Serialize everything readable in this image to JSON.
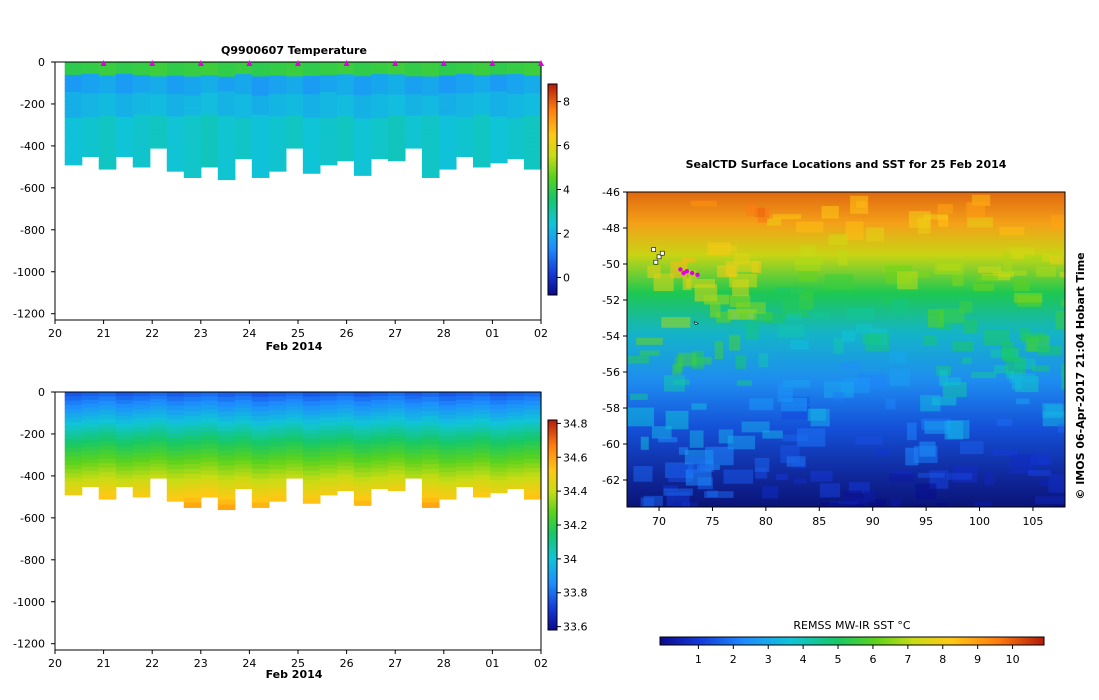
{
  "chart_data": [
    {
      "type": "heatmap",
      "title": "Q9900607  Temperature",
      "xlabel": "Feb 2014",
      "ylabel": "",
      "x_ticks": [
        "20",
        "21",
        "22",
        "23",
        "24",
        "25",
        "26",
        "27",
        "28",
        "01",
        "02"
      ],
      "y_ticks": [
        0,
        -200,
        -400,
        -600,
        -800,
        -1000,
        -1200
      ],
      "ylim": [
        -1230,
        0
      ],
      "colorbar": {
        "ticks": [
          0,
          2,
          4,
          6,
          8
        ],
        "range": [
          -0.8,
          8.8
        ]
      },
      "profile_max_depth": [
        490,
        450,
        510,
        450,
        500,
        410,
        520,
        550,
        500,
        560,
        460,
        550,
        520,
        410,
        530,
        490,
        470,
        540,
        460,
        470,
        410,
        550,
        510,
        450,
        500,
        480,
        460,
        510
      ],
      "surface_markers_x": [
        "21",
        "22",
        "23",
        "24",
        "25",
        "26",
        "27",
        "28",
        "01",
        "02"
      ]
    },
    {
      "type": "heatmap",
      "title": "",
      "xlabel": "Feb 2014",
      "ylabel": "",
      "x_ticks": [
        "20",
        "21",
        "22",
        "23",
        "24",
        "25",
        "26",
        "27",
        "28",
        "01",
        "02"
      ],
      "y_ticks": [
        0,
        -200,
        -400,
        -600,
        -800,
        -1000,
        -1200
      ],
      "ylim": [
        -1230,
        0
      ],
      "colorbar": {
        "ticks": [
          33.6,
          33.8,
          34,
          34.2,
          34.4,
          34.6,
          34.8
        ],
        "range": [
          33.58,
          34.82
        ]
      }
    },
    {
      "type": "heatmap",
      "title": "SealCTD Surface Locations and SST for 25 Feb 2014",
      "xlabel": "",
      "ylabel": "",
      "x_ticks": [
        70,
        75,
        80,
        85,
        90,
        95,
        100,
        105
      ],
      "y_ticks": [
        -46,
        -48,
        -50,
        -52,
        -54,
        -56,
        -58,
        -60,
        -62
      ],
      "xlim": [
        67,
        108
      ],
      "ylim": [
        -63.5,
        -46
      ],
      "side_label": "©  IMOS 06-Apr-2017 21:04 Hobart Time",
      "colorbar": {
        "label": "REMSS MW-IR SST °C",
        "ticks": [
          1,
          2,
          3,
          4,
          5,
          6,
          7,
          8,
          9,
          10
        ],
        "range": [
          -0.1,
          10.9
        ]
      }
    }
  ]
}
